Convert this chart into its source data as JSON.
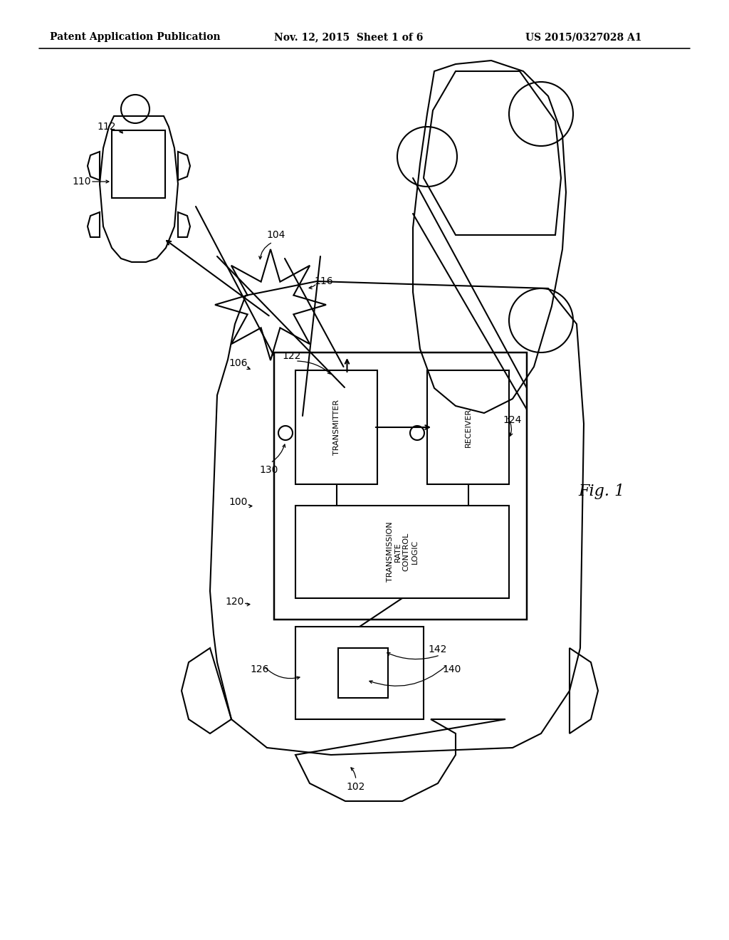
{
  "bg_color": "#ffffff",
  "lc": "#000000",
  "header_left": "Patent Application Publication",
  "header_mid": "Nov. 12, 2015  Sheet 1 of 6",
  "header_right": "US 2015/0327028 A1",
  "fig_label": "Fig. 1"
}
